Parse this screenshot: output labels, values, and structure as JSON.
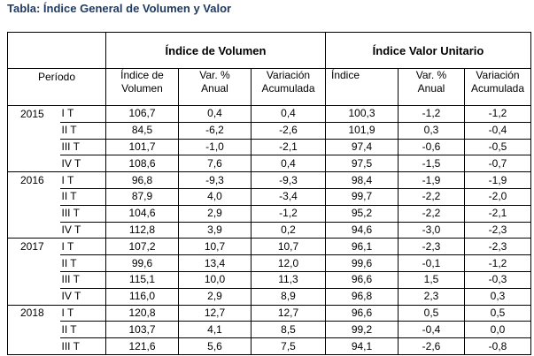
{
  "title": "Tabla: Índice General de Volumen y Valor",
  "groups": {
    "volumen": "Índice de Volumen",
    "valor": "Índice Valor Unitario"
  },
  "headers": {
    "periodo": "Período",
    "indice_volumen_l1": "Índice de",
    "indice_volumen_l2": "Volumen",
    "var_anual_l1": "Var. %",
    "var_anual_l2": "Anual",
    "var_acum_l1": "Variación",
    "var_acum_l2": "Acumulada",
    "indice": "Índice",
    "var_anual2_l1": "Var. %",
    "var_anual2_l2": "Anual",
    "var_acum2_l1": "Variación",
    "var_acum2_l2": "Acumulada"
  },
  "rows": [
    {
      "year": "2015",
      "q": "I T",
      "iv": "106,7",
      "va": "0,4",
      "vac": "0,4",
      "ivu": "100,3",
      "va2": "-1,2",
      "vac2": "-1,2"
    },
    {
      "year": "",
      "q": "II T",
      "iv": "84,5",
      "va": "-6,2",
      "vac": "-2,6",
      "ivu": "101,9",
      "va2": "0,3",
      "vac2": "-0,4"
    },
    {
      "year": "",
      "q": "III T",
      "iv": "101,7",
      "va": "-1,0",
      "vac": "-2,1",
      "ivu": "97,4",
      "va2": "-0,6",
      "vac2": "-0,5"
    },
    {
      "year": "",
      "q": "IV T",
      "iv": "108,6",
      "va": "7,6",
      "vac": "0,4",
      "ivu": "97,5",
      "va2": "-1,5",
      "vac2": "-0,7"
    },
    {
      "year": "2016",
      "q": "I T",
      "iv": "96,8",
      "va": "-9,3",
      "vac": "-9,3",
      "ivu": "98,4",
      "va2": "-1,9",
      "vac2": "-1,9"
    },
    {
      "year": "",
      "q": "II T",
      "iv": "87,9",
      "va": "4,0",
      "vac": "-3,4",
      "ivu": "99,7",
      "va2": "-2,2",
      "vac2": "-2,0"
    },
    {
      "year": "",
      "q": "III T",
      "iv": "104,6",
      "va": "2,9",
      "vac": "-1,2",
      "ivu": "95,2",
      "va2": "-2,2",
      "vac2": "-2,1"
    },
    {
      "year": "",
      "q": "IV T",
      "iv": "112,8",
      "va": "3,9",
      "vac": "0,2",
      "ivu": "94,6",
      "va2": "-3,0",
      "vac2": "-2,3"
    },
    {
      "year": "2017",
      "q": "I T",
      "iv": "107,2",
      "va": "10,7",
      "vac": "10,7",
      "ivu": "96,1",
      "va2": "-2,3",
      "vac2": "-2,3"
    },
    {
      "year": "",
      "q": "II T",
      "iv": "99,6",
      "va": "13,4",
      "vac": "12,0",
      "ivu": "99,6",
      "va2": "-0,1",
      "vac2": "-1,2"
    },
    {
      "year": "",
      "q": "III T",
      "iv": "115,1",
      "va": "10,0",
      "vac": "11,3",
      "ivu": "96,6",
      "va2": "1,5",
      "vac2": "-0,3"
    },
    {
      "year": "",
      "q": "IV T",
      "iv": "116,0",
      "va": "2,9",
      "vac": "8,9",
      "ivu": "96,8",
      "va2": "2,3",
      "vac2": "0,3"
    },
    {
      "year": "2018",
      "q": "I T",
      "iv": "120,8",
      "va": "12,7",
      "vac": "12,7",
      "ivu": "96,6",
      "va2": "0,5",
      "vac2": "0,5"
    },
    {
      "year": "",
      "q": "II T",
      "iv": "103,7",
      "va": "4,1",
      "vac": "8,5",
      "ivu": "99,2",
      "va2": "-0,4",
      "vac2": "0,0"
    },
    {
      "year": "",
      "q": "III T",
      "iv": "121,6",
      "va": "5,6",
      "vac": "7,5",
      "ivu": "94,1",
      "va2": "-2,6",
      "vac2": "-0,8"
    }
  ]
}
